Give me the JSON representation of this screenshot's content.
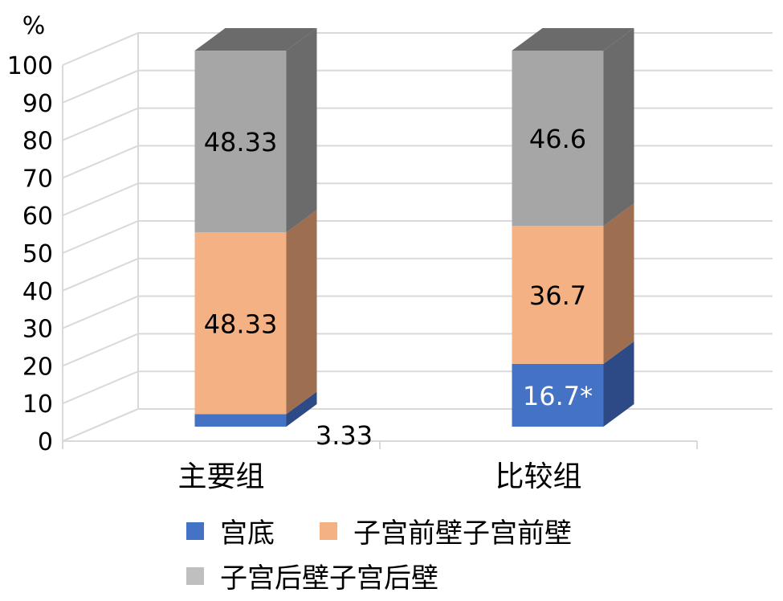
{
  "chart_data": {
    "type": "bar",
    "stacked": true,
    "three_d": true,
    "y_unit": "%",
    "ylim": [
      0,
      100
    ],
    "yticks": [
      0,
      10,
      20,
      30,
      40,
      50,
      60,
      70,
      80,
      90,
      100
    ],
    "grid": true,
    "legend_position": "bottom",
    "categories": [
      "主要组",
      "比较组"
    ],
    "series": [
      {
        "name": "宫底",
        "values": [
          3.33,
          16.7
        ],
        "labels": [
          "3.33",
          "16.7*"
        ],
        "color": "#4472C4",
        "side_color": "#2E4A86",
        "label_color": "#000000"
      },
      {
        "name": "子宫前壁子宫前壁",
        "values": [
          48.33,
          36.7
        ],
        "labels": [
          "48.33",
          "36.7"
        ],
        "color": "#F4B183",
        "side_color": "#9D6E50",
        "label_color": "#000000"
      },
      {
        "name": "子宫后壁子宫后壁",
        "values": [
          48.33,
          46.6
        ],
        "labels": [
          "48.33",
          "46.6"
        ],
        "color": "#A6A6A6",
        "side_color": "#6B6B6B",
        "label_color": "#000000"
      }
    ]
  }
}
